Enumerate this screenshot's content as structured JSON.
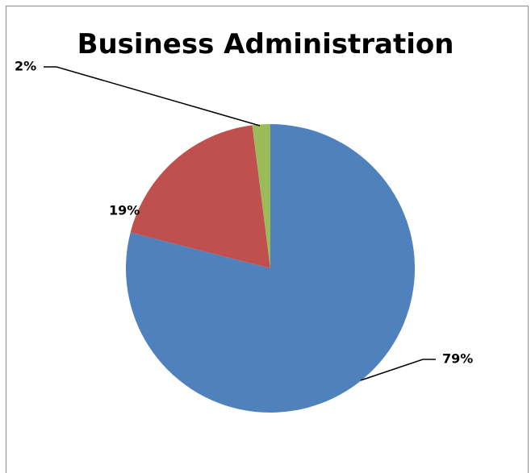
{
  "chart_data": {
    "type": "pie",
    "title": "Business Administration",
    "categories": [
      "",
      "",
      ""
    ],
    "values": [
      79,
      19,
      2
    ],
    "labels": [
      "79%",
      "19%",
      "2%"
    ],
    "colors": [
      "#4f81bd",
      "#c0504d",
      "#9bbb59"
    ],
    "start_angle_deg": 0,
    "direction": "clockwise",
    "legend": "none"
  }
}
